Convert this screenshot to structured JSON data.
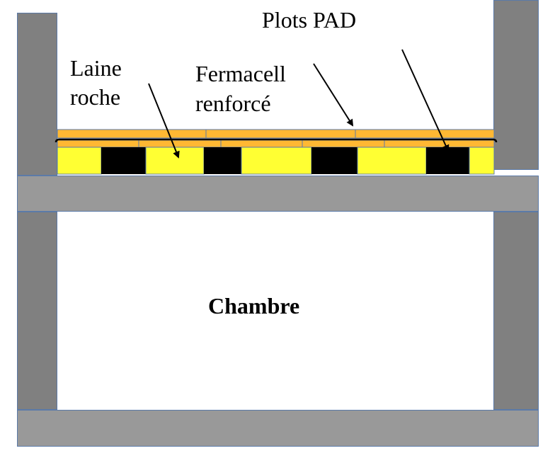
{
  "labels": {
    "plots": "Plots PAD",
    "laine_line1": "Laine",
    "laine_line2": "roche",
    "fermacell_line1": "Fermacell",
    "fermacell_line2": "renforcé",
    "room": "Chambre"
  },
  "colors": {
    "wall": "#808080",
    "slab": "#999999",
    "insulation": "#ffff33",
    "pad": "#000000",
    "board": "#ffb833",
    "outline": "#5b7aa8"
  }
}
